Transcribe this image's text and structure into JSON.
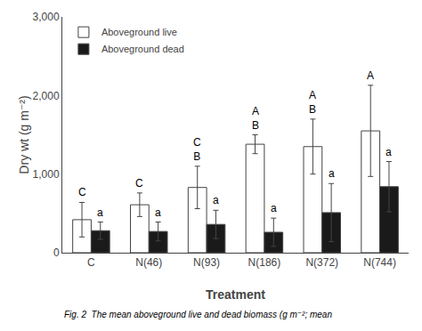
{
  "chart_data": {
    "type": "bar",
    "xlabel": "Treatment",
    "ylabel": "Dry wt (g m⁻²)",
    "caption": "Fig. 2  The mean aboveground live and dead biomass (g m⁻²; mean",
    "categories": [
      "C",
      "N(46)",
      "N(93)",
      "N(186)",
      "N(372)",
      "N(744)"
    ],
    "series": [
      {
        "name": "Aboveground live",
        "color": "#ffffff",
        "values": [
          420,
          610,
          830,
          1380,
          1350,
          1550
        ],
        "errors": [
          220,
          150,
          270,
          120,
          350,
          580
        ],
        "annotations": [
          [
            "C"
          ],
          [
            "C"
          ],
          [
            "C",
            "B"
          ],
          [
            "A",
            "B"
          ],
          [
            "A",
            "B"
          ],
          [
            "A"
          ]
        ]
      },
      {
        "name": "Aboveground dead",
        "color": "#1a1a1a",
        "values": [
          280,
          270,
          360,
          260,
          510,
          840
        ],
        "errors": [
          110,
          120,
          180,
          180,
          370,
          320
        ],
        "annotations": [
          [
            "a"
          ],
          [
            "a"
          ],
          [
            "a"
          ],
          [
            "a"
          ],
          [
            "a"
          ],
          [
            "a"
          ]
        ]
      }
    ],
    "ylim": [
      0,
      3000
    ],
    "yticks": [
      0,
      {
        "value": 1000,
        "label": "1,000"
      },
      {
        "value": 2000,
        "label": "2,000"
      },
      {
        "value": 3000,
        "label": "3,000"
      }
    ],
    "grid": false,
    "legend": "upper left"
  }
}
